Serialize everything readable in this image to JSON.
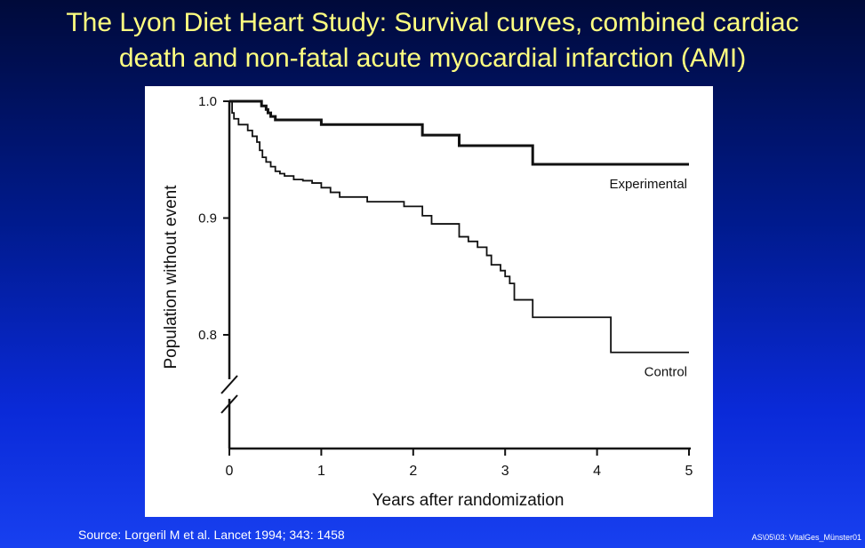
{
  "slide": {
    "title_line1": "The Lyon Diet Heart Study: Survival curves, combined cardiac",
    "title_line2": "death and non-fatal acute myocardial infarction (AMI)",
    "source": "Source: Lorgeril M et al. Lancet 1994; 343: 1458",
    "reference": "AS\\05\\03: VitalGes_Münster01"
  },
  "chart_data": {
    "type": "line",
    "xlabel": "Years after randomization",
    "ylabel": "Population without event",
    "xlim": [
      0,
      5
    ],
    "ylim": [
      0.75,
      1.0
    ],
    "y_axis_break": true,
    "grid": false,
    "x_ticks": [
      0,
      1,
      2,
      3,
      4,
      5
    ],
    "x_tick_labels": [
      "0",
      "1",
      "2",
      "3",
      "4",
      "5"
    ],
    "y_ticks": [
      0.8,
      0.9,
      1.0
    ],
    "y_tick_labels": [
      "0.8",
      "0.9",
      "1.0"
    ],
    "series": [
      {
        "name": "Experimental",
        "step": true,
        "x": [
          0,
          0.3,
          0.35,
          0.4,
          0.42,
          0.45,
          0.5,
          1.0,
          2.1,
          2.5,
          3.3,
          5.0
        ],
        "y": [
          1.0,
          1.0,
          0.996,
          0.993,
          0.99,
          0.987,
          0.984,
          0.98,
          0.971,
          0.962,
          0.946,
          0.946
        ]
      },
      {
        "name": "Control",
        "step": true,
        "x": [
          0,
          0.03,
          0.05,
          0.1,
          0.2,
          0.25,
          0.3,
          0.33,
          0.36,
          0.4,
          0.45,
          0.5,
          0.55,
          0.6,
          0.7,
          0.8,
          0.9,
          1.0,
          1.1,
          1.2,
          1.5,
          1.9,
          2.1,
          2.2,
          2.5,
          2.6,
          2.7,
          2.8,
          2.85,
          2.95,
          3.0,
          3.05,
          3.1,
          3.3,
          4.15,
          5.0
        ],
        "y": [
          1.0,
          0.99,
          0.985,
          0.98,
          0.975,
          0.97,
          0.965,
          0.958,
          0.952,
          0.948,
          0.944,
          0.94,
          0.938,
          0.936,
          0.933,
          0.932,
          0.93,
          0.926,
          0.922,
          0.918,
          0.914,
          0.91,
          0.902,
          0.895,
          0.884,
          0.88,
          0.875,
          0.868,
          0.86,
          0.855,
          0.85,
          0.844,
          0.83,
          0.815,
          0.785,
          0.785
        ]
      }
    ]
  }
}
